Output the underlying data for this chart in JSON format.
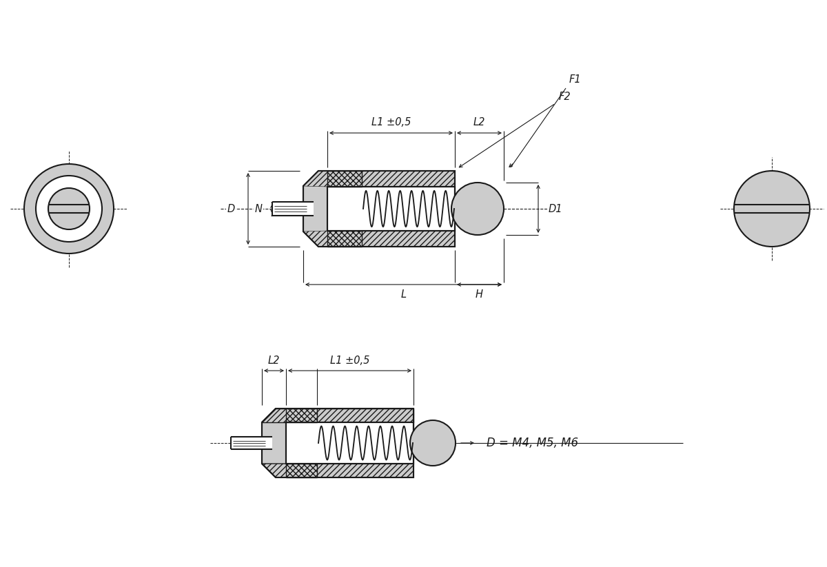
{
  "bg_color": "#ffffff",
  "line_color": "#1a1a1a",
  "fill_color": "#cccccc",
  "fill_light": "#e8e8e8",
  "dim_label_F1": "F1",
  "dim_label_F2": "F2",
  "dim_label_L1": "L1 ±0,5",
  "dim_label_L2": "L2",
  "dim_label_L": "L",
  "dim_label_H": "H",
  "dim_label_D": "D",
  "dim_label_D1": "D1",
  "dim_label_N": "N",
  "dim_label_note": "D = M4, M5, M6",
  "font_size_dim": 10.5,
  "font_size_note": 12
}
